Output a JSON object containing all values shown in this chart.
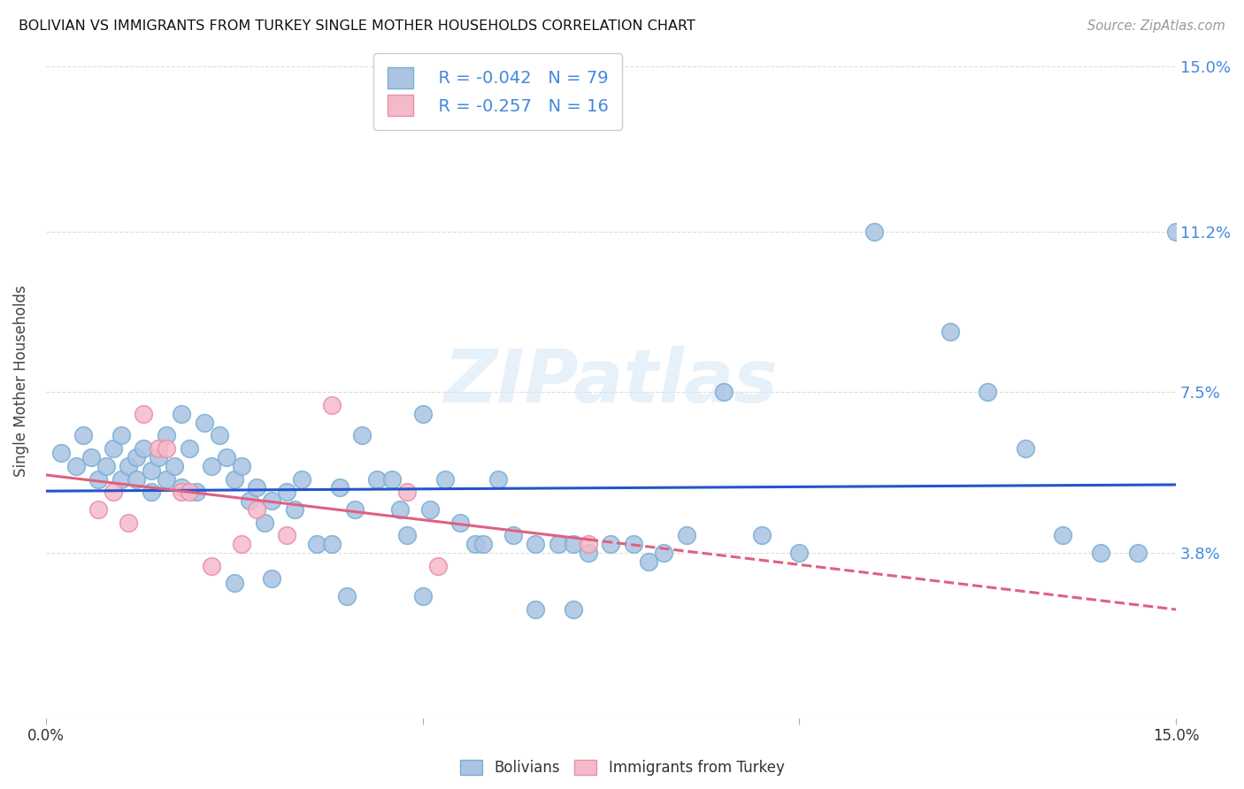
{
  "title": "BOLIVIAN VS IMMIGRANTS FROM TURKEY SINGLE MOTHER HOUSEHOLDS CORRELATION CHART",
  "source": "Source: ZipAtlas.com",
  "ylabel": "Single Mother Households",
  "xlim": [
    0.0,
    0.15
  ],
  "ylim": [
    0.0,
    0.155
  ],
  "ytick_values": [
    0.0,
    0.038,
    0.075,
    0.112,
    0.15
  ],
  "ytick_labels": [
    "",
    "3.8%",
    "7.5%",
    "11.2%",
    "15.0%"
  ],
  "bolivians_x": [
    0.002,
    0.004,
    0.005,
    0.006,
    0.007,
    0.008,
    0.009,
    0.01,
    0.01,
    0.011,
    0.012,
    0.012,
    0.013,
    0.014,
    0.014,
    0.015,
    0.016,
    0.016,
    0.017,
    0.018,
    0.018,
    0.019,
    0.02,
    0.021,
    0.022,
    0.023,
    0.024,
    0.025,
    0.026,
    0.027,
    0.028,
    0.029,
    0.03,
    0.032,
    0.033,
    0.034,
    0.036,
    0.038,
    0.039,
    0.041,
    0.042,
    0.044,
    0.046,
    0.047,
    0.048,
    0.05,
    0.051,
    0.053,
    0.055,
    0.057,
    0.058,
    0.06,
    0.062,
    0.065,
    0.068,
    0.07,
    0.072,
    0.075,
    0.078,
    0.08,
    0.082,
    0.085,
    0.09,
    0.095,
    0.1,
    0.11,
    0.12,
    0.125,
    0.13,
    0.135,
    0.14,
    0.145,
    0.15,
    0.025,
    0.03,
    0.04,
    0.05,
    0.065,
    0.07
  ],
  "bolivians_y": [
    0.061,
    0.058,
    0.065,
    0.06,
    0.055,
    0.058,
    0.062,
    0.055,
    0.065,
    0.058,
    0.06,
    0.055,
    0.062,
    0.057,
    0.052,
    0.06,
    0.065,
    0.055,
    0.058,
    0.07,
    0.053,
    0.062,
    0.052,
    0.068,
    0.058,
    0.065,
    0.06,
    0.055,
    0.058,
    0.05,
    0.053,
    0.045,
    0.05,
    0.052,
    0.048,
    0.055,
    0.04,
    0.04,
    0.053,
    0.048,
    0.065,
    0.055,
    0.055,
    0.048,
    0.042,
    0.07,
    0.048,
    0.055,
    0.045,
    0.04,
    0.04,
    0.055,
    0.042,
    0.04,
    0.04,
    0.04,
    0.038,
    0.04,
    0.04,
    0.036,
    0.038,
    0.042,
    0.075,
    0.042,
    0.038,
    0.112,
    0.089,
    0.075,
    0.062,
    0.042,
    0.038,
    0.038,
    0.112,
    0.031,
    0.032,
    0.028,
    0.028,
    0.025,
    0.025
  ],
  "turkey_x": [
    0.007,
    0.009,
    0.011,
    0.013,
    0.015,
    0.016,
    0.018,
    0.019,
    0.022,
    0.026,
    0.028,
    0.032,
    0.038,
    0.048,
    0.052,
    0.072
  ],
  "turkey_y": [
    0.048,
    0.052,
    0.045,
    0.07,
    0.062,
    0.062,
    0.052,
    0.052,
    0.035,
    0.04,
    0.048,
    0.042,
    0.072,
    0.052,
    0.035,
    0.04
  ],
  "bolivian_color": "#aac4e2",
  "bolivian_edge": "#7aafd4",
  "turkey_color": "#f5baca",
  "turkey_edge": "#e890a8",
  "bolivian_trend_color": "#2255cc",
  "turkey_trend_color": "#e06080",
  "legend_label_1": "R = -0.042   N = 79",
  "legend_label_2": "R = -0.257   N = 16",
  "bottom_label_1": "Bolivians",
  "bottom_label_2": "Immigrants from Turkey",
  "watermark": "ZIPatlas",
  "background_color": "#ffffff",
  "grid_color": "#dddddd",
  "label_color": "#4488dd"
}
